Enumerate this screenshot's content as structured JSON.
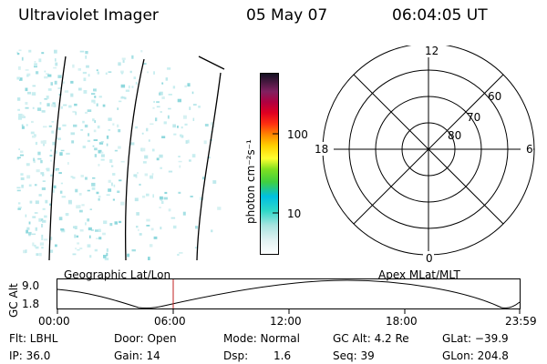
{
  "header": {
    "title": "Ultraviolet Imager",
    "date": "05 May 07",
    "time": "06:04:05 UT"
  },
  "colorbar": {
    "unit_label": "photon cm⁻²s⁻¹",
    "ticks": [
      "100",
      "10"
    ]
  },
  "polar": {
    "lat_labels": [
      "60",
      "70",
      "80"
    ],
    "mlt_labels": [
      "12",
      "18",
      "6",
      "0"
    ]
  },
  "timeline": {
    "left_label": "Geographic Lat/Lon",
    "right_label": "Apex MLat/MLT",
    "axis_title": "GC Alt",
    "y_ticks": [
      "9.0",
      "1.8"
    ],
    "x_ticks": [
      "00:00",
      "06:00",
      "12:00",
      "18:00",
      "23:59"
    ],
    "cursor_time": "06:04:05",
    "cursor_color": "#c02020"
  },
  "status": {
    "flt": "Flt: LBHL",
    "ip": "IP: 36.0",
    "door": "Door: Open",
    "gain": "Gain: 14",
    "mode": "Mode: Normal",
    "dsp_label": "Dsp:",
    "dsp_value": "1.6",
    "gc_alt": "GC Alt: 4.2 Re",
    "seq": "Seq: 39",
    "glat": "GLat: −39.9",
    "glon": "GLon: 204.8"
  }
}
